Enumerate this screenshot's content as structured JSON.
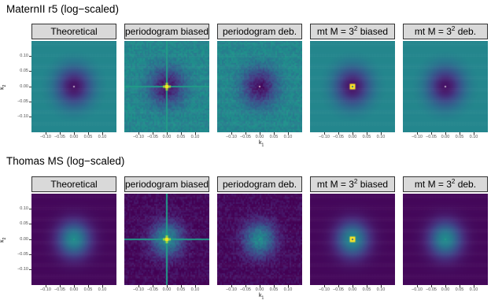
{
  "figure": {
    "rows": [
      {
        "title": "MaternII r5 (log−scaled)"
      },
      {
        "title": "Thomas MS (log−scaled)"
      }
    ],
    "facets": [
      {
        "base": "Theoretical",
        "sup": "",
        "suffix": ""
      },
      {
        "base": "periodogram biased",
        "sup": "",
        "suffix": ""
      },
      {
        "base": "periodogram deb.",
        "sup": "",
        "suffix": ""
      },
      {
        "base": "mt M = 3",
        "sup": "2",
        "suffix": " biased"
      },
      {
        "base": "mt M = 3",
        "sup": "2",
        "suffix": " deb."
      }
    ],
    "xlabel": "k",
    "xlabel_sub": "1",
    "ylabel": "k",
    "ylabel_sub": "2"
  },
  "chart_data": [
    {
      "type": "heatmap",
      "title": "MaternII r5 (log−scaled)",
      "facets": [
        "Theoretical",
        "periodogram biased",
        "periodogram deb.",
        "mt M = 3^2 biased",
        "mt M = 3^2 deb."
      ],
      "xlabel": "k1",
      "ylabel": "k2",
      "xlim": [
        -0.15,
        0.15
      ],
      "ylim": [
        -0.15,
        0.15
      ],
      "xticks": [
        "−0.10",
        "−0.05",
        "0.00",
        "0.05",
        "0.10"
      ],
      "yticks": [
        "0.10",
        "0.05",
        "0.00",
        "−0.05",
        "−0.10"
      ],
      "colors": {
        "low": "#440154",
        "high": "#fde725",
        "mid": "#3b528b"
      },
      "panels": [
        {
          "center_dip_radius": 0.13,
          "edge_level": 0.42,
          "noise": 0.0,
          "peak": "point"
        },
        {
          "center_dip_radius": 0.13,
          "edge_level": 0.42,
          "noise": 0.22,
          "peak": "cross"
        },
        {
          "center_dip_radius": 0.13,
          "edge_level": 0.42,
          "noise": 0.22,
          "peak": "point"
        },
        {
          "center_dip_radius": 0.13,
          "edge_level": 0.42,
          "noise": 0.0,
          "peak": "square"
        },
        {
          "center_dip_radius": 0.13,
          "edge_level": 0.42,
          "noise": 0.0,
          "peak": "point"
        }
      ]
    },
    {
      "type": "heatmap",
      "title": "Thomas MS (log−scaled)",
      "facets": [
        "Theoretical",
        "periodogram biased",
        "periodogram deb.",
        "mt M = 3^2 biased",
        "mt M = 3^2 deb."
      ],
      "xlabel": "k1",
      "ylabel": "k2",
      "xlim": [
        -0.15,
        0.15
      ],
      "ylim": [
        -0.15,
        0.15
      ],
      "xticks": [
        "−0.10",
        "−0.05",
        "0.00",
        "0.05",
        "0.10"
      ],
      "yticks": [
        "0.10",
        "0.05",
        "0.00",
        "−0.05",
        "−0.10"
      ],
      "colors": {
        "low": "#440154",
        "high": "#fde725",
        "mid": "#2c728e"
      },
      "panels": [
        {
          "center_bump": 0.45,
          "noise": 0.0,
          "peak": "point"
        },
        {
          "center_bump": 0.45,
          "noise": 0.22,
          "peak": "cross"
        },
        {
          "center_bump": 0.45,
          "noise": 0.22,
          "peak": "point"
        },
        {
          "center_bump": 0.45,
          "noise": 0.0,
          "peak": "square"
        },
        {
          "center_bump": 0.45,
          "noise": 0.0,
          "peak": "point"
        }
      ]
    }
  ]
}
